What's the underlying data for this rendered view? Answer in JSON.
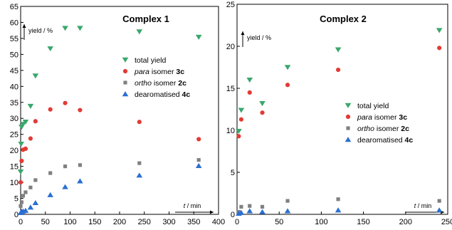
{
  "colors": {
    "total": "#3aa76d",
    "para": "#e23b35",
    "ortho": "#808080",
    "dearom": "#2a6fd1"
  },
  "chart_data": [
    {
      "type": "scatter",
      "title": "Complex 1",
      "ylabel": "yield / %",
      "xlabel": "t / min",
      "xlim": [
        0,
        400
      ],
      "ylim": [
        0,
        65
      ],
      "xticks": [
        "0",
        "50",
        "100",
        "150",
        "200",
        "250",
        "300",
        "350",
        "400"
      ],
      "yticks": [
        "0",
        "5",
        "10",
        "15",
        "20",
        "25",
        "30",
        "35",
        "40",
        "45",
        "50",
        "55",
        "60",
        "65"
      ],
      "legend": [
        {
          "marker": "triangle-down",
          "color_key": "total",
          "label": "total yield"
        },
        {
          "marker": "circle",
          "color_key": "para",
          "italic": "para",
          "label": " isomer ",
          "bold": "3c"
        },
        {
          "marker": "square",
          "color_key": "ortho",
          "italic": "ortho",
          "label": " isomer ",
          "bold": "2c"
        },
        {
          "marker": "triangle-up",
          "color_key": "dearom",
          "label": "dearomatised ",
          "bold": "4c"
        }
      ],
      "series": [
        {
          "key": "total",
          "marker": "triangle-down",
          "points": [
            [
              0,
              13.3
            ],
            [
              1,
              22
            ],
            [
              2,
              27.3
            ],
            [
              5,
              28.2
            ],
            [
              10,
              28.9
            ],
            [
              20,
              33.8
            ],
            [
              30,
              43.3
            ],
            [
              60,
              51.8
            ],
            [
              90,
              58.2
            ],
            [
              120,
              58.2
            ],
            [
              240,
              57.1
            ],
            [
              360,
              55.4
            ]
          ]
        },
        {
          "key": "para",
          "marker": "circle",
          "points": [
            [
              0,
              10
            ],
            [
              2,
              16.7
            ],
            [
              5,
              20.2
            ],
            [
              10,
              20.5
            ],
            [
              20,
              23.7
            ],
            [
              30,
              29.1
            ],
            [
              60,
              32.8
            ],
            [
              90,
              34.8
            ],
            [
              120,
              32.6
            ],
            [
              240,
              28.9
            ],
            [
              360,
              23.5
            ]
          ]
        },
        {
          "key": "ortho",
          "marker": "square",
          "points": [
            [
              0,
              2.6
            ],
            [
              2,
              3.8
            ],
            [
              5,
              5.8
            ],
            [
              10,
              6.9
            ],
            [
              20,
              8.4
            ],
            [
              30,
              10.7
            ],
            [
              60,
              12.9
            ],
            [
              90,
              15
            ],
            [
              120,
              15.4
            ],
            [
              240,
              16
            ],
            [
              360,
              17
            ]
          ]
        },
        {
          "key": "dearom",
          "marker": "triangle-up",
          "points": [
            [
              0,
              0.5
            ],
            [
              2,
              0.9
            ],
            [
              5,
              1
            ],
            [
              10,
              1.2
            ],
            [
              20,
              2.2
            ],
            [
              30,
              3.6
            ],
            [
              60,
              6.1
            ],
            [
              90,
              8.6
            ],
            [
              120,
              10.4
            ],
            [
              240,
              12.2
            ],
            [
              360,
              15.2
            ]
          ]
        }
      ]
    },
    {
      "type": "scatter",
      "title": "Complex 2",
      "ylabel": "yield / %",
      "xlabel": "t / min",
      "xlim": [
        0,
        250
      ],
      "ylim": [
        0,
        25
      ],
      "xticks": [
        "0",
        "50",
        "100",
        "150",
        "200",
        "250"
      ],
      "yticks": [
        "0",
        "5",
        "10",
        "15",
        "20",
        "25"
      ],
      "legend": [
        {
          "marker": "triangle-down",
          "color_key": "total",
          "label": "total yield"
        },
        {
          "marker": "circle",
          "color_key": "para",
          "italic": "para",
          "label": " isomer ",
          "bold": "3c"
        },
        {
          "marker": "square",
          "color_key": "ortho",
          "italic": "ortho",
          "label": " isomer ",
          "bold": "2c"
        },
        {
          "marker": "triangle-up",
          "color_key": "dearom",
          "label": "dearomatised ",
          "bold": "4c"
        }
      ],
      "series": [
        {
          "key": "total",
          "marker": "triangle-down",
          "points": [
            [
              2,
              9.9
            ],
            [
              5,
              12.4
            ],
            [
              15,
              16
            ],
            [
              30,
              13.2
            ],
            [
              60,
              17.5
            ],
            [
              120,
              19.6
            ],
            [
              240,
              21.9
            ]
          ]
        },
        {
          "key": "para",
          "marker": "circle",
          "points": [
            [
              2,
              9.3
            ],
            [
              5,
              11.3
            ],
            [
              15,
              14.5
            ],
            [
              30,
              12.1
            ],
            [
              60,
              15.4
            ],
            [
              120,
              17.2
            ],
            [
              240,
              19.8
            ]
          ]
        },
        {
          "key": "ortho",
          "marker": "square",
          "points": [
            [
              2,
              0.3
            ],
            [
              5,
              0.9
            ],
            [
              15,
              1
            ],
            [
              30,
              0.9
            ],
            [
              60,
              1.6
            ],
            [
              120,
              1.8
            ],
            [
              240,
              1.6
            ]
          ]
        },
        {
          "key": "dearom",
          "marker": "triangle-up",
          "points": [
            [
              2,
              0.1
            ],
            [
              5,
              0.2
            ],
            [
              15,
              0.4
            ],
            [
              30,
              0.3
            ],
            [
              60,
              0.4
            ],
            [
              120,
              0.5
            ],
            [
              240,
              0.5
            ]
          ]
        }
      ]
    }
  ]
}
